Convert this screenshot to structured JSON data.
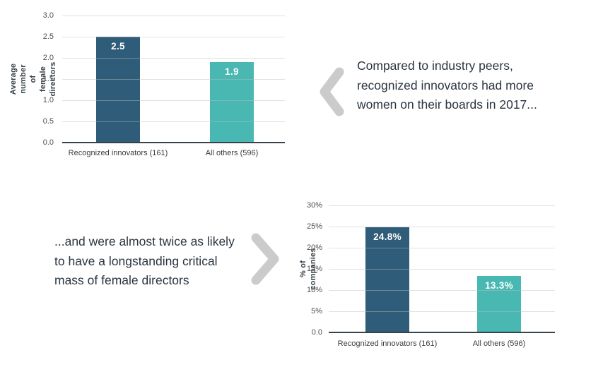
{
  "annotations": {
    "top_text": {
      "lines": [
        "Compared to industry peers,",
        "recognized innovators had more",
        "women on their boards in 2017..."
      ]
    },
    "bottom_text": {
      "lines": [
        "...and were almost twice as likely",
        "to have a longstanding critical",
        "mass of female directors"
      ]
    }
  },
  "icons": {
    "left_chevron": "chevron-left",
    "right_chevron": "chevron-right"
  },
  "colors": {
    "innovators_bar": "#2f5c78",
    "others_bar": "#49b8b2",
    "chevron": "#cbcbcb",
    "axis": "#37424a",
    "grid": "#e3e3e3",
    "annotation_text": "#2b3540",
    "bar_value_text": "#ffffff"
  },
  "chart_data": [
    {
      "type": "bar",
      "title": "",
      "categories": [
        "Recognized innovators (161)",
        "All others (596)"
      ],
      "values": [
        2.5,
        1.9
      ],
      "value_labels": [
        "2.5",
        "1.9"
      ],
      "ylabel": "Average number of female\ndirectors",
      "xlabel": "",
      "ytick_labels": [
        "0.0",
        "0.5",
        "1.0",
        "1.5",
        "2.0",
        "2.5",
        "3.0"
      ],
      "ylim": [
        0,
        3.0
      ],
      "grid": true,
      "legend": false,
      "bar_colors": [
        "#2f5c78",
        "#49b8b2"
      ]
    },
    {
      "type": "bar",
      "title": "",
      "categories": [
        "Recognized innovators (161)",
        "All others (596)"
      ],
      "values": [
        24.8,
        13.3
      ],
      "value_labels": [
        "24.8%",
        "13.3%"
      ],
      "ylabel": "% of companies",
      "xlabel": "",
      "ytick_labels": [
        "0.0",
        "5%",
        "10%",
        "15%",
        "20%",
        "25%",
        "30%"
      ],
      "ylim": [
        0,
        30
      ],
      "grid": true,
      "legend": false,
      "bar_colors": [
        "#2f5c78",
        "#49b8b2"
      ]
    }
  ]
}
